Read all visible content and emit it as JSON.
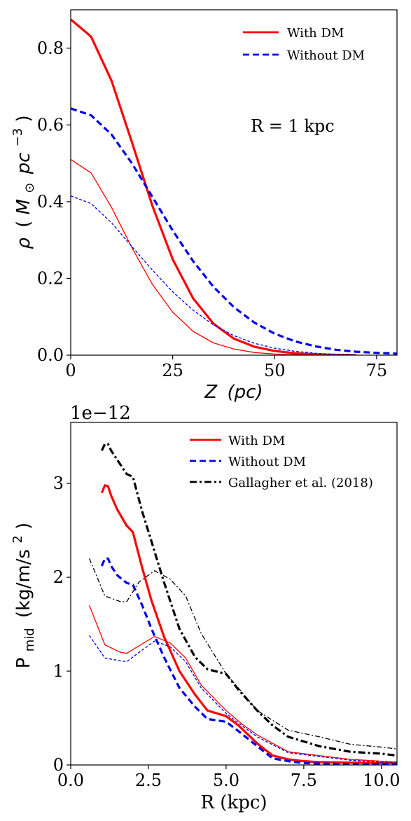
{
  "chart_data": [
    {
      "type": "line",
      "xlabel": "Z (pc)",
      "ylabel": "ρ (M⊙ pc⁻³)",
      "ylabel_parts": {
        "rho": "ρ",
        "M": "M",
        "sun": "⊙",
        "pc": "pc",
        "exp": "−3"
      },
      "xlabel_parts": {
        "z": "Z",
        "unit": "(pc)"
      },
      "xlim": [
        0,
        80
      ],
      "ylim": [
        0,
        0.9
      ],
      "x_ticks": [
        0,
        25,
        50,
        75
      ],
      "x_tick_labels": [
        "0",
        "25",
        "50",
        "75"
      ],
      "y_ticks": [
        0.0,
        0.2,
        0.4,
        0.6,
        0.8
      ],
      "y_tick_labels": [
        "0.0",
        "0.2",
        "0.4",
        "0.6",
        "0.8"
      ],
      "annotation": "R = 1 kpc",
      "legend": [
        {
          "label": "With DM",
          "color": "#ff0000",
          "style": "solid"
        },
        {
          "label": "Without DM",
          "color": "#0000ee",
          "style": "dashed"
        }
      ],
      "series": [
        {
          "name": "With DM",
          "color": "#ff0000",
          "style": "solid",
          "width": "thick",
          "x": [
            0,
            5,
            10,
            15,
            20,
            25,
            30,
            35,
            40,
            45,
            50,
            55,
            60,
            65,
            70
          ],
          "y": [
            0.875,
            0.83,
            0.715,
            0.555,
            0.39,
            0.25,
            0.148,
            0.082,
            0.043,
            0.022,
            0.011,
            0.005,
            0.002,
            0.001,
            0.0
          ]
        },
        {
          "name": "Without DM",
          "color": "#0000ee",
          "style": "dashed",
          "width": "thick",
          "x": [
            0,
            5,
            10,
            15,
            20,
            25,
            30,
            35,
            40,
            45,
            50,
            55,
            60,
            65,
            70,
            75,
            80
          ],
          "y": [
            0.643,
            0.625,
            0.575,
            0.5,
            0.413,
            0.325,
            0.245,
            0.178,
            0.125,
            0.085,
            0.056,
            0.036,
            0.023,
            0.014,
            0.009,
            0.006,
            0.004
          ]
        },
        {
          "name": "With DM",
          "color": "#ff0000",
          "style": "solid",
          "width": "thin",
          "x": [
            0,
            5,
            10,
            15,
            20,
            25,
            30,
            35,
            40,
            45,
            50,
            55,
            60
          ],
          "y": [
            0.51,
            0.475,
            0.385,
            0.28,
            0.185,
            0.112,
            0.062,
            0.032,
            0.016,
            0.007,
            0.003,
            0.001,
            0.0
          ]
        },
        {
          "name": "Without DM",
          "color": "#0000ee",
          "style": "dashed",
          "width": "thin",
          "x": [
            0,
            5,
            10,
            15,
            20,
            25,
            30,
            35,
            40,
            45,
            50,
            55,
            60,
            65,
            70
          ],
          "y": [
            0.415,
            0.395,
            0.345,
            0.283,
            0.222,
            0.165,
            0.117,
            0.079,
            0.051,
            0.031,
            0.018,
            0.01,
            0.005,
            0.002,
            0.001
          ]
        }
      ]
    },
    {
      "type": "line",
      "xlabel": "R (kpc)",
      "ylabel": "Pmid (kg/m/s²)",
      "ylabel_parts": {
        "P": "P",
        "sub": "mid",
        "unit": "(kg/m/s",
        "exp": "2",
        "close": ")"
      },
      "offset_text": "1e−12",
      "xlim": [
        0,
        10.5
      ],
      "ylim": [
        0,
        3.65
      ],
      "x_ticks": [
        0.0,
        2.5,
        5.0,
        7.5,
        10.0
      ],
      "x_tick_labels": [
        "0.0",
        "2.5",
        "5.0",
        "7.5",
        "10.0"
      ],
      "y_ticks": [
        0,
        1,
        2,
        3
      ],
      "y_tick_labels": [
        "0",
        "1",
        "2",
        "3"
      ],
      "legend": [
        {
          "label": "With DM",
          "color": "#ff0000",
          "style": "solid"
        },
        {
          "label": "Without DM",
          "color": "#0000ee",
          "style": "dashed"
        },
        {
          "label": "Gallagher et al. (2018)",
          "color": "#000000",
          "style": "dashdot"
        }
      ],
      "series": [
        {
          "name": "With DM",
          "color": "#ff0000",
          "style": "solid",
          "width": "thick",
          "x": [
            1.0,
            1.1,
            1.2,
            1.3,
            1.5,
            1.8,
            2.0,
            2.3,
            2.6,
            3.0,
            3.5,
            4.0,
            4.4,
            5.0,
            5.4,
            6.0,
            6.5,
            7.0,
            7.5,
            8.0,
            9.0,
            10.0,
            10.5
          ],
          "y": [
            2.9,
            2.98,
            2.97,
            2.87,
            2.72,
            2.55,
            2.48,
            2.1,
            1.75,
            1.37,
            1.0,
            0.75,
            0.58,
            0.52,
            0.42,
            0.23,
            0.1,
            0.06,
            0.04,
            0.03,
            0.025,
            0.02,
            0.02
          ]
        },
        {
          "name": "Without DM",
          "color": "#0000ee",
          "style": "dashed",
          "width": "thick",
          "x": [
            1.0,
            1.1,
            1.2,
            1.3,
            1.5,
            1.8,
            2.0,
            2.3,
            2.6,
            3.0,
            3.5,
            4.0,
            4.4,
            5.0,
            5.4,
            6.0,
            6.5,
            7.0,
            7.5,
            8.0,
            9.0,
            10.0,
            10.5
          ],
          "y": [
            2.12,
            2.2,
            2.2,
            2.12,
            2.02,
            1.94,
            1.92,
            1.7,
            1.45,
            1.15,
            0.82,
            0.62,
            0.49,
            0.46,
            0.36,
            0.2,
            0.07,
            0.04,
            0.02,
            0.015,
            0.01,
            0.01,
            0.01
          ]
        },
        {
          "name": "Gallagher et al. (2018)",
          "color": "#000000",
          "style": "dashdot",
          "width": "thick",
          "x": [
            1.0,
            1.1,
            1.2,
            1.3,
            1.5,
            1.8,
            2.0,
            2.3,
            2.6,
            3.0,
            3.5,
            4.0,
            4.4,
            5.0,
            5.4,
            6.0,
            6.5,
            7.0,
            7.5,
            8.0,
            9.0,
            10.0,
            10.5
          ],
          "y": [
            3.35,
            3.42,
            3.42,
            3.35,
            3.25,
            3.1,
            3.07,
            2.7,
            2.38,
            1.95,
            1.45,
            1.15,
            1.02,
            0.97,
            0.8,
            0.58,
            0.42,
            0.3,
            0.25,
            0.2,
            0.14,
            0.12,
            0.1
          ]
        },
        {
          "name": "With DM",
          "color": "#ff0000",
          "style": "solid",
          "width": "thin",
          "x": [
            0.6,
            1.1,
            1.6,
            1.8,
            2.2,
            2.7,
            3.2,
            3.7,
            4.2,
            5.0,
            5.5,
            6.0,
            7.0,
            8.0,
            9.0,
            10.0,
            10.5
          ],
          "y": [
            1.7,
            1.28,
            1.2,
            1.19,
            1.27,
            1.37,
            1.3,
            1.14,
            0.85,
            0.58,
            0.44,
            0.32,
            0.14,
            0.1,
            0.06,
            0.04,
            0.03
          ]
        },
        {
          "name": "Without DM",
          "color": "#0000ee",
          "style": "dashed",
          "width": "thin",
          "x": [
            0.6,
            1.1,
            1.6,
            1.8,
            2.2,
            2.7,
            3.2,
            3.7,
            4.2,
            5.0,
            5.5,
            6.0,
            7.0,
            8.0,
            9.0,
            10.0,
            10.5
          ],
          "y": [
            1.38,
            1.14,
            1.11,
            1.1,
            1.2,
            1.32,
            1.26,
            1.1,
            0.82,
            0.55,
            0.42,
            0.3,
            0.13,
            0.09,
            0.05,
            0.03,
            0.03
          ]
        },
        {
          "name": "Gallagher et al. (2018)",
          "color": "#000000",
          "style": "dashdot",
          "width": "thin",
          "x": [
            0.6,
            1.1,
            1.6,
            1.8,
            2.2,
            2.7,
            3.2,
            3.7,
            4.2,
            5.0,
            5.5,
            6.0,
            7.0,
            8.0,
            9.0,
            10.0,
            10.5
          ],
          "y": [
            2.2,
            1.8,
            1.74,
            1.74,
            1.95,
            2.07,
            1.98,
            1.8,
            1.4,
            0.97,
            0.78,
            0.58,
            0.37,
            0.3,
            0.22,
            0.19,
            0.17
          ]
        }
      ]
    }
  ]
}
